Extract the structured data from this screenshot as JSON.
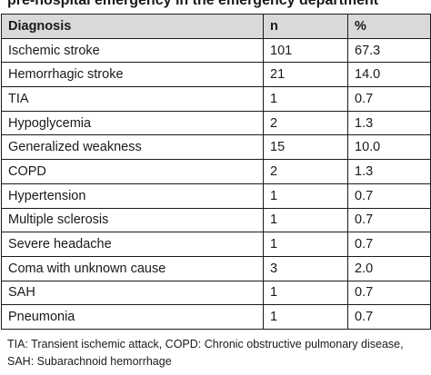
{
  "caption": "pre-hospital emergency in the emergency department",
  "table": {
    "headers": [
      "Diagnosis",
      "n",
      "%"
    ],
    "rows": [
      [
        "Ischemic stroke",
        "101",
        "67.3"
      ],
      [
        "Hemorrhagic stroke",
        "21",
        "14.0"
      ],
      [
        "TIA",
        "1",
        "0.7"
      ],
      [
        "Hypoglycemia",
        "2",
        "1.3"
      ],
      [
        "Generalized weakness",
        "15",
        "10.0"
      ],
      [
        "COPD",
        "2",
        "1.3"
      ],
      [
        "Hypertension",
        "1",
        "0.7"
      ],
      [
        "Multiple sclerosis",
        "1",
        "0.7"
      ],
      [
        "Severe headache",
        "1",
        "0.7"
      ],
      [
        "Coma with unknown cause",
        "3",
        "2.0"
      ],
      [
        "SAH",
        "1",
        "0.7"
      ],
      [
        "Pneumonia",
        "1",
        "0.7"
      ]
    ]
  },
  "footnote": "TIA: Transient ischemic attack, COPD: Chronic obstructive pulmonary disease, SAH: Subarachnoid hemorrhage",
  "colors": {
    "header_background": "#d9d9d9",
    "border": "#1a1a1a"
  }
}
